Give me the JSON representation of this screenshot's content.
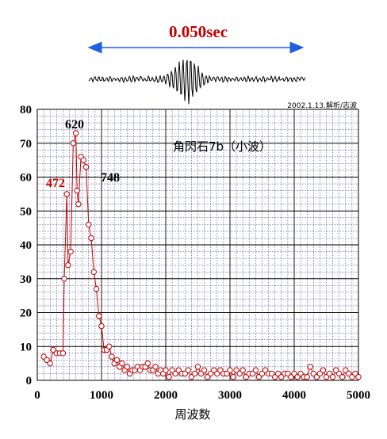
{
  "header": {
    "duration": "0.050sec",
    "credit": "2002.1.13.解析/志波"
  },
  "colors": {
    "accent": "#c00000",
    "arrow": "#1f5fe0",
    "grid": "#2a2a8a",
    "axis": "#000000"
  },
  "chart_data": {
    "type": "line",
    "title": "角閃石7b（小波）",
    "xlabel": "周波数",
    "ylabel": "",
    "xlim": [
      0,
      5000
    ],
    "ylim": [
      0,
      80
    ],
    "x_ticks": [
      0,
      1000,
      2000,
      3000,
      4000,
      5000
    ],
    "y_ticks": [
      0,
      10,
      20,
      30,
      40,
      50,
      60,
      70,
      80
    ],
    "grid": true,
    "peak_labels": [
      {
        "text": "472",
        "x": 472,
        "color": "#c00000"
      },
      {
        "text": "620",
        "x": 620,
        "color": "#000000"
      },
      {
        "text": "748",
        "x": 748,
        "color": "#000000"
      }
    ],
    "series": [
      {
        "color": "#c00000",
        "x": [
          100,
          150,
          200,
          250,
          300,
          350,
          400,
          420,
          460,
          480,
          520,
          560,
          600,
          620,
          640,
          680,
          720,
          760,
          800,
          840,
          880,
          920,
          960,
          1000,
          1040,
          1080,
          1120,
          1160,
          1200,
          1240,
          1280,
          1320,
          1360,
          1400,
          1440,
          1480,
          1520,
          1560,
          1600,
          1640,
          1680,
          1720,
          1760,
          1800,
          1840,
          1880,
          1920,
          1960,
          2000,
          2050,
          2100,
          2150,
          2200,
          2250,
          2300,
          2350,
          2400,
          2450,
          2500,
          2550,
          2600,
          2650,
          2700,
          2750,
          2800,
          2850,
          2900,
          2950,
          3000,
          3050,
          3100,
          3150,
          3200,
          3250,
          3300,
          3350,
          3400,
          3450,
          3500,
          3550,
          3600,
          3650,
          3700,
          3750,
          3800,
          3850,
          3900,
          3950,
          4000,
          4050,
          4100,
          4150,
          4200,
          4250,
          4300,
          4350,
          4400,
          4450,
          4500,
          4550,
          4600,
          4650,
          4700,
          4750,
          4800,
          4850,
          4900,
          4950,
          5000
        ],
        "y": [
          7,
          6,
          5,
          9,
          8,
          8,
          8,
          30,
          55,
          34,
          38,
          70,
          73,
          56,
          52,
          66,
          65,
          63,
          46,
          42,
          32,
          27,
          19,
          16,
          9,
          9,
          10,
          7,
          5,
          6,
          4,
          5,
          3,
          4,
          2,
          3,
          3,
          4,
          3,
          4,
          4,
          5,
          3,
          3,
          4,
          2,
          3,
          2,
          3,
          1,
          3,
          2,
          3,
          2,
          2,
          3,
          1,
          2,
          4,
          2,
          3,
          1,
          2,
          3,
          2,
          3,
          2,
          2,
          3,
          1,
          3,
          2,
          3,
          1,
          2,
          2,
          3,
          1,
          2,
          3,
          2,
          2,
          1,
          2,
          1,
          2,
          2,
          1,
          2,
          1,
          2,
          1,
          1,
          4,
          2,
          1,
          2,
          3,
          1,
          2,
          1,
          3,
          2,
          1,
          3,
          2,
          1,
          2,
          1
        ]
      }
    ]
  }
}
